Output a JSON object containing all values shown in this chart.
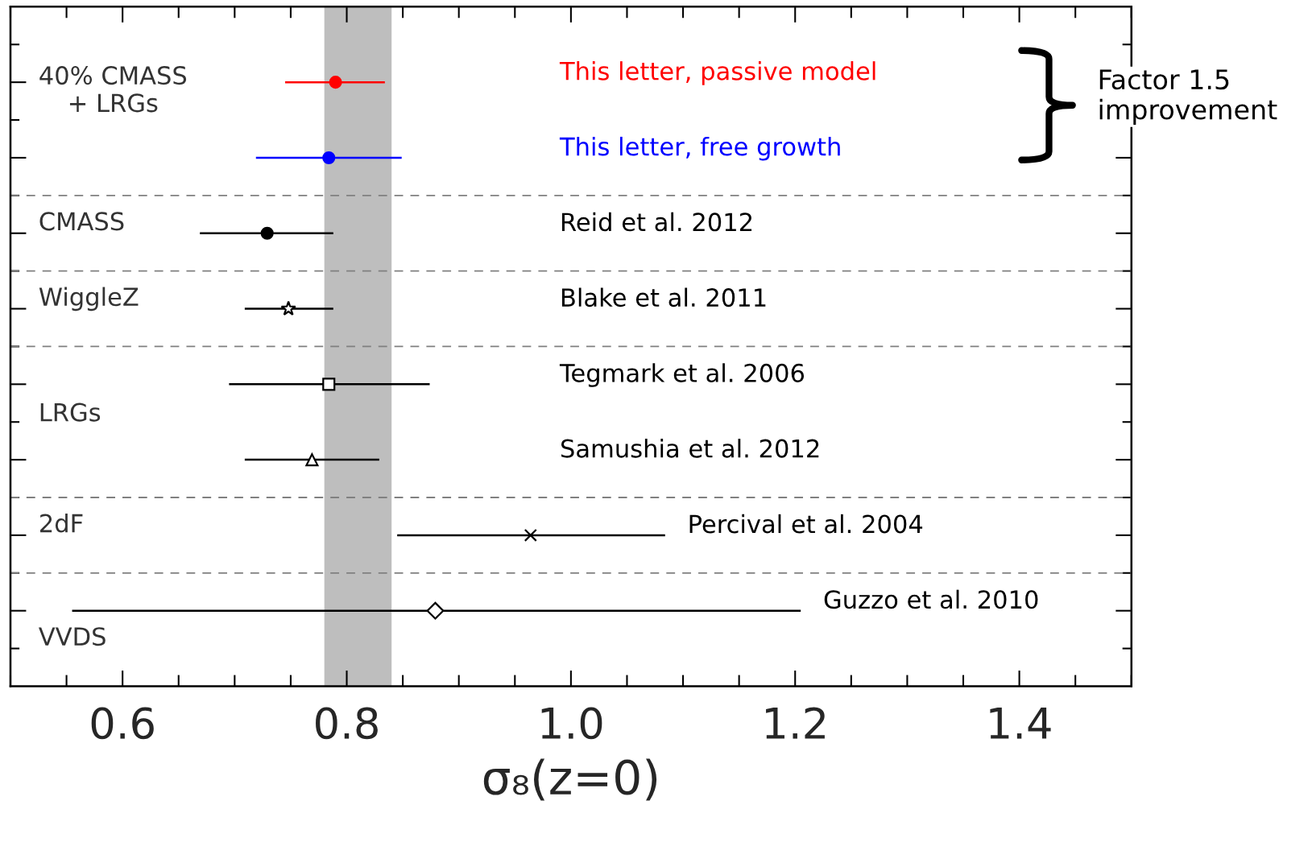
{
  "chart_data": {
    "type": "scatter",
    "orientation": "horizontal",
    "xlabel": "σ₈(z=0)",
    "categories": [
      null,
      null,
      null,
      null,
      null,
      null,
      null,
      null
    ],
    "series": [
      {
        "name": "This letter, passive model",
        "color": "#ff0000",
        "marker": "circle",
        "values": [
          0.79,
          null,
          null,
          null,
          null,
          null,
          null,
          null
        ],
        "errors": [
          [
            0.745,
            0.834
          ],
          null,
          null,
          null,
          null,
          null,
          null,
          null
        ]
      },
      {
        "name": "This letter, free growth",
        "color": "#0000ff",
        "marker": "circle",
        "values": [
          null,
          0.784,
          null,
          null,
          null,
          null,
          null,
          null
        ],
        "errors": [
          null,
          0.065,
          null,
          null,
          null,
          null,
          null,
          null
        ]
      },
      {
        "name": "Reid et al. 2012",
        "color": "#000000",
        "marker": "circle",
        "values": [
          null,
          null,
          0.729,
          null,
          null,
          null,
          null,
          null
        ],
        "errors": [
          null,
          null,
          [
            0.669,
            0.788
          ],
          null,
          null,
          null,
          null,
          null
        ]
      },
      {
        "name": "Blake et al. 2011",
        "color": "#000000",
        "marker": "star",
        "values": [
          null,
          null,
          null,
          0.748,
          null,
          null,
          null,
          null
        ],
        "errors": [
          null,
          null,
          null,
          [
            0.709,
            0.788
          ],
          null,
          null,
          null,
          null
        ]
      },
      {
        "name": "Tegmark et al. 2006",
        "color": "#000000",
        "marker": "square",
        "values": [
          null,
          null,
          null,
          null,
          0.784,
          null,
          null,
          null
        ],
        "errors": [
          null,
          null,
          null,
          null,
          [
            0.695,
            0.874
          ],
          null,
          null,
          null
        ]
      },
      {
        "name": "Samushia et al. 2012",
        "color": "#000000",
        "marker": "triangle",
        "values": [
          null,
          null,
          null,
          null,
          null,
          0.769,
          null,
          null
        ],
        "errors": [
          null,
          null,
          null,
          null,
          null,
          0.06,
          null,
          null
        ]
      },
      {
        "name": "Percival et al. 2004",
        "color": "#000000",
        "marker": "cross",
        "values": [
          null,
          null,
          null,
          null,
          null,
          null,
          0.964,
          null
        ],
        "errors": [
          null,
          null,
          null,
          null,
          null,
          null,
          [
            0.845,
            1.084
          ],
          null
        ]
      },
      {
        "name": "Guzzo et al. 2010",
        "color": "#000000",
        "marker": "diamond",
        "values": [
          null,
          null,
          null,
          null,
          null,
          null,
          null,
          0.879
        ],
        "errors": [
          null,
          null,
          null,
          null,
          null,
          null,
          null,
          [
            0.555,
            1.205
          ]
        ]
      }
    ],
    "xlim": [
      0.5,
      1.5
    ],
    "xticks": [
      {
        "value": 0.5,
        "label": null
      },
      {
        "value": 0.55,
        "label": null
      },
      {
        "value": 0.6,
        "label": "0.6"
      },
      {
        "value": 0.65,
        "label": null
      },
      {
        "value": 0.7,
        "label": null
      },
      {
        "value": 0.75,
        "label": null
      },
      {
        "value": 0.8,
        "label": "0.8"
      },
      {
        "value": 0.85,
        "label": null
      },
      {
        "value": 0.9,
        "label": null
      },
      {
        "value": 0.95,
        "label": null
      },
      {
        "value": 1.0,
        "label": "1.0"
      },
      {
        "value": 1.05,
        "label": null
      },
      {
        "value": 1.1,
        "label": null
      },
      {
        "value": 1.15,
        "label": null
      },
      {
        "value": 1.2,
        "label": "1.2"
      },
      {
        "value": 1.25,
        "label": null
      },
      {
        "value": 1.3,
        "label": null
      },
      {
        "value": 1.35,
        "label": null
      },
      {
        "value": 1.4,
        "label": "1.4"
      },
      {
        "value": 1.45,
        "label": null
      },
      {
        "value": 1.5,
        "label": null
      }
    ],
    "bands": [
      {
        "axis": "x",
        "from": 0.78,
        "to": 0.84,
        "color": "#bebebe"
      }
    ],
    "annotations": [
      "40% CMASS\n+ LRGs",
      "CMASS",
      "WiggleZ",
      "LRGs",
      "2dF",
      "VVDS",
      "Factor 1.5\nimprovement"
    ],
    "grid": false,
    "legend": false,
    "tick_labels": "x"
  }
}
